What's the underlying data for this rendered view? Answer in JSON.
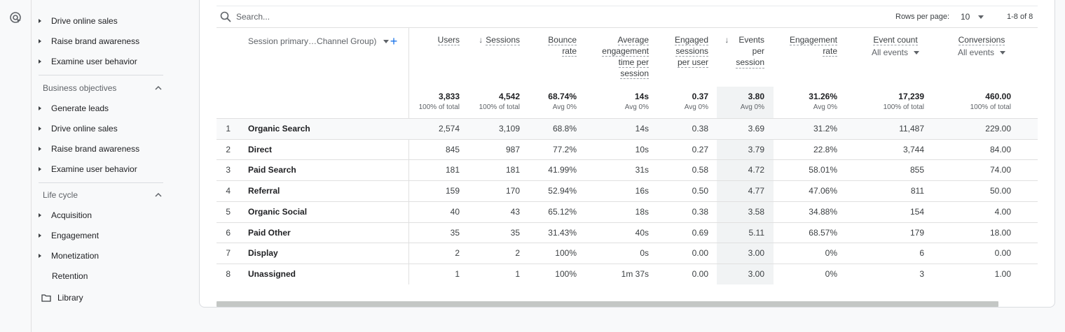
{
  "sidebar": {
    "top_items": [
      {
        "label": "Drive online sales"
      },
      {
        "label": "Raise brand awareness"
      },
      {
        "label": "Examine user behavior"
      }
    ],
    "business_objectives": {
      "title": "Business objectives",
      "items": [
        {
          "label": "Generate leads"
        },
        {
          "label": "Drive online sales"
        },
        {
          "label": "Raise brand awareness"
        },
        {
          "label": "Examine user behavior"
        }
      ]
    },
    "life_cycle": {
      "title": "Life cycle",
      "items": [
        {
          "label": "Acquisition"
        },
        {
          "label": "Engagement"
        },
        {
          "label": "Monetization"
        },
        {
          "label": "Retention"
        }
      ]
    },
    "library": "Library"
  },
  "toolbar": {
    "search_placeholder": "Search...",
    "rows_per_page_label": "Rows per page:",
    "rows_per_page_value": "10",
    "pager_text": "1-8 of 8"
  },
  "table": {
    "dimension_header": "Session primary…Channel Group)",
    "columns": [
      {
        "label": "Users"
      },
      {
        "label": "Sessions",
        "sorted": true
      },
      {
        "label": "Bounce\nrate"
      },
      {
        "label": "Average\nengagement\ntime per\nsession"
      },
      {
        "label": "Engaged\nsessions\nper user"
      },
      {
        "label": "Events\nper\nsession",
        "sorted": true
      },
      {
        "label": "Engagement\nrate"
      },
      {
        "label": "Event count",
        "sub": "All events"
      },
      {
        "label": "Conversions",
        "sub": "All events"
      }
    ],
    "totals": [
      {
        "value": "3,833",
        "sub": "100% of total"
      },
      {
        "value": "4,542",
        "sub": "100% of total"
      },
      {
        "value": "68.74%",
        "sub": "Avg 0%"
      },
      {
        "value": "14s",
        "sub": "Avg 0%"
      },
      {
        "value": "0.37",
        "sub": "Avg 0%"
      },
      {
        "value": "3.80",
        "sub": "Avg 0%"
      },
      {
        "value": "31.26%",
        "sub": "Avg 0%"
      },
      {
        "value": "17,239",
        "sub": "100% of total"
      },
      {
        "value": "460.00",
        "sub": "100% of total"
      }
    ],
    "rows": [
      {
        "idx": "1",
        "name": "Organic Search",
        "cells": [
          "2,574",
          "3,109",
          "68.8%",
          "14s",
          "0.38",
          "3.69",
          "31.2%",
          "11,487",
          "229.00"
        ]
      },
      {
        "idx": "2",
        "name": "Direct",
        "cells": [
          "845",
          "987",
          "77.2%",
          "10s",
          "0.27",
          "3.79",
          "22.8%",
          "3,744",
          "84.00"
        ]
      },
      {
        "idx": "3",
        "name": "Paid Search",
        "cells": [
          "181",
          "181",
          "41.99%",
          "31s",
          "0.58",
          "4.72",
          "58.01%",
          "855",
          "74.00"
        ]
      },
      {
        "idx": "4",
        "name": "Referral",
        "cells": [
          "159",
          "170",
          "52.94%",
          "16s",
          "0.50",
          "4.77",
          "47.06%",
          "811",
          "50.00"
        ]
      },
      {
        "idx": "5",
        "name": "Organic Social",
        "cells": [
          "40",
          "43",
          "65.12%",
          "18s",
          "0.38",
          "3.58",
          "34.88%",
          "154",
          "4.00"
        ]
      },
      {
        "idx": "6",
        "name": "Paid Other",
        "cells": [
          "35",
          "35",
          "31.43%",
          "40s",
          "0.69",
          "5.11",
          "68.57%",
          "179",
          "18.00"
        ]
      },
      {
        "idx": "7",
        "name": "Display",
        "cells": [
          "2",
          "2",
          "100%",
          "0s",
          "0.00",
          "3.00",
          "0%",
          "6",
          "0.00"
        ]
      },
      {
        "idx": "8",
        "name": "Unassigned",
        "cells": [
          "1",
          "1",
          "100%",
          "1m 37s",
          "0.00",
          "3.00",
          "0%",
          "3",
          "1.00"
        ]
      }
    ]
  }
}
